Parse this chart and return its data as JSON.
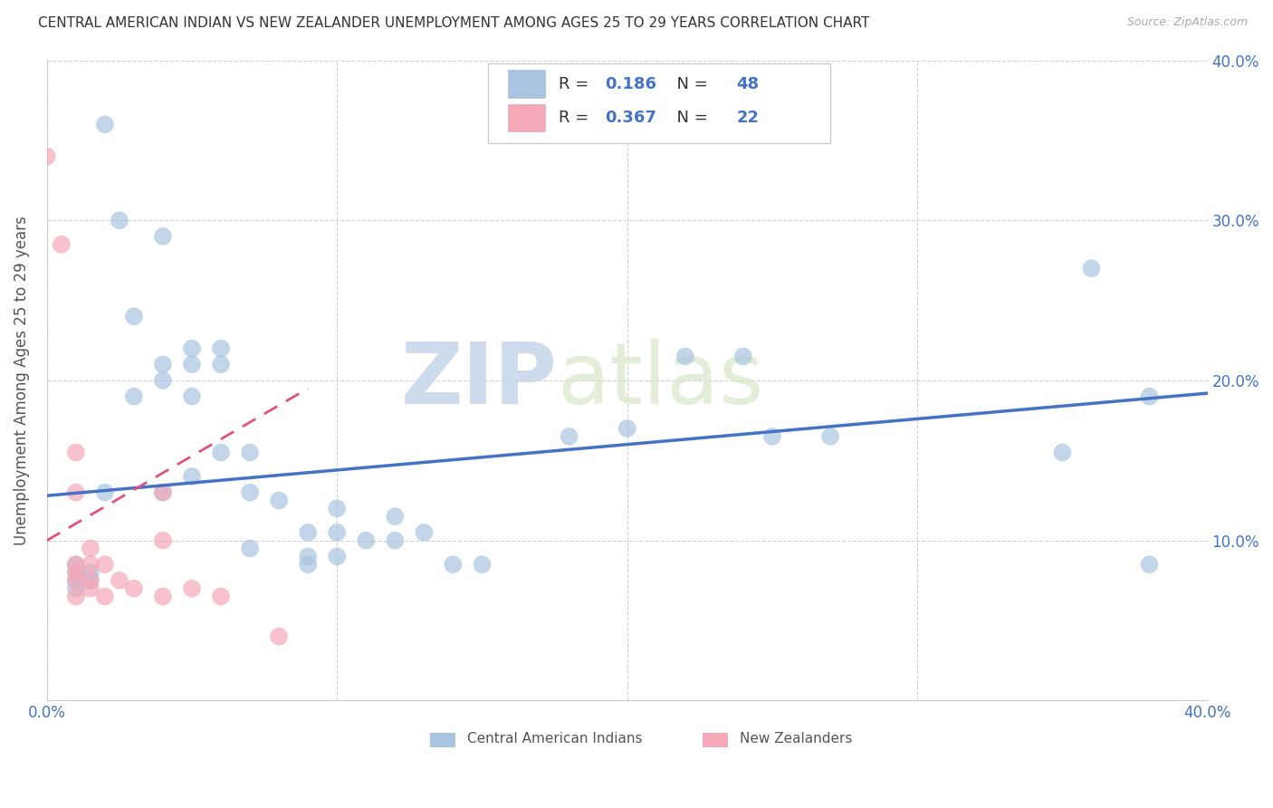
{
  "title": "CENTRAL AMERICAN INDIAN VS NEW ZEALANDER UNEMPLOYMENT AMONG AGES 25 TO 29 YEARS CORRELATION CHART",
  "source": "Source: ZipAtlas.com",
  "ylabel": "Unemployment Among Ages 25 to 29 years",
  "xlim": [
    0.0,
    0.4
  ],
  "ylim": [
    0.0,
    0.4
  ],
  "xticks": [
    0.0,
    0.1,
    0.2,
    0.3,
    0.4
  ],
  "yticks": [
    0.0,
    0.1,
    0.2,
    0.3,
    0.4
  ],
  "xticklabels": [
    "0.0%",
    "",
    "",
    "",
    "40.0%"
  ],
  "right_yticklabels": [
    "",
    "10.0%",
    "20.0%",
    "30.0%",
    "40.0%"
  ],
  "legend_entries": [
    {
      "label": "Central American Indians",
      "color": "#a8c4e0",
      "R": "0.186",
      "N": "48"
    },
    {
      "label": "New Zealanders",
      "color": "#f4a8b8",
      "R": "0.367",
      "N": "22"
    }
  ],
  "watermark_zip": "ZIP",
  "watermark_atlas": "atlas",
  "blue_scatter_color": "#a8c4e0",
  "pink_scatter_color": "#f4a8b8",
  "blue_line_color": "#4472C4",
  "pink_line_color": "#E05080",
  "blue_points": [
    [
      0.02,
      0.36
    ],
    [
      0.025,
      0.3
    ],
    [
      0.03,
      0.24
    ],
    [
      0.04,
      0.29
    ],
    [
      0.04,
      0.21
    ],
    [
      0.04,
      0.2
    ],
    [
      0.05,
      0.22
    ],
    [
      0.05,
      0.21
    ],
    [
      0.05,
      0.19
    ],
    [
      0.06,
      0.22
    ],
    [
      0.06,
      0.21
    ],
    [
      0.06,
      0.155
    ],
    [
      0.07,
      0.155
    ],
    [
      0.08,
      0.125
    ],
    [
      0.09,
      0.105
    ],
    [
      0.09,
      0.09
    ],
    [
      0.1,
      0.12
    ],
    [
      0.1,
      0.105
    ],
    [
      0.11,
      0.1
    ],
    [
      0.12,
      0.115
    ],
    [
      0.12,
      0.1
    ],
    [
      0.13,
      0.105
    ],
    [
      0.18,
      0.165
    ],
    [
      0.2,
      0.17
    ],
    [
      0.22,
      0.215
    ],
    [
      0.24,
      0.215
    ],
    [
      0.25,
      0.165
    ],
    [
      0.27,
      0.165
    ],
    [
      0.01,
      0.085
    ],
    [
      0.01,
      0.08
    ],
    [
      0.01,
      0.075
    ],
    [
      0.01,
      0.07
    ],
    [
      0.015,
      0.08
    ],
    [
      0.015,
      0.075
    ],
    [
      0.02,
      0.13
    ],
    [
      0.03,
      0.19
    ],
    [
      0.04,
      0.13
    ],
    [
      0.05,
      0.14
    ],
    [
      0.07,
      0.13
    ],
    [
      0.07,
      0.095
    ],
    [
      0.09,
      0.085
    ],
    [
      0.1,
      0.09
    ],
    [
      0.14,
      0.085
    ],
    [
      0.15,
      0.085
    ],
    [
      0.35,
      0.155
    ],
    [
      0.36,
      0.27
    ],
    [
      0.38,
      0.085
    ],
    [
      0.38,
      0.19
    ]
  ],
  "pink_points": [
    [
      0.0,
      0.34
    ],
    [
      0.005,
      0.285
    ],
    [
      0.01,
      0.155
    ],
    [
      0.01,
      0.13
    ],
    [
      0.01,
      0.085
    ],
    [
      0.01,
      0.08
    ],
    [
      0.01,
      0.075
    ],
    [
      0.01,
      0.065
    ],
    [
      0.015,
      0.095
    ],
    [
      0.015,
      0.085
    ],
    [
      0.015,
      0.075
    ],
    [
      0.015,
      0.07
    ],
    [
      0.02,
      0.085
    ],
    [
      0.02,
      0.065
    ],
    [
      0.025,
      0.075
    ],
    [
      0.03,
      0.07
    ],
    [
      0.04,
      0.13
    ],
    [
      0.04,
      0.1
    ],
    [
      0.04,
      0.065
    ],
    [
      0.05,
      0.07
    ],
    [
      0.06,
      0.065
    ],
    [
      0.08,
      0.04
    ]
  ],
  "blue_trend_x": [
    0.0,
    0.4
  ],
  "blue_trend_y": [
    0.128,
    0.192
  ],
  "pink_trend_x": [
    0.0,
    0.09
  ],
  "pink_trend_y": [
    0.1,
    0.195
  ]
}
